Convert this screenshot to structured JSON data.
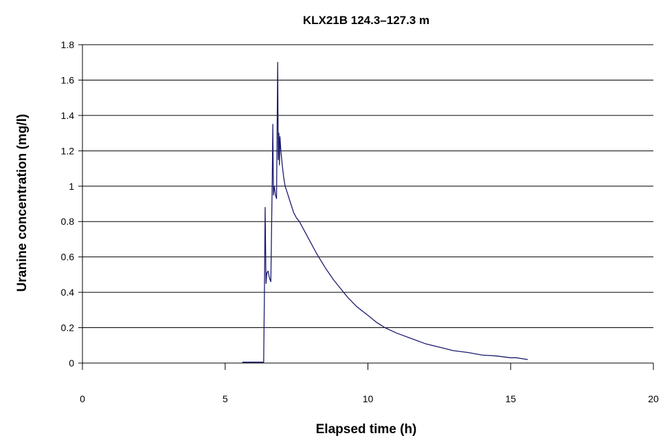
{
  "chart_data": {
    "type": "line",
    "title": "KLX21B 124.3–127.3 m",
    "xlabel": "Elapsed time (h)",
    "ylabel": "Uranine concentration (mg/l)",
    "xlim": [
      0,
      20
    ],
    "ylim": [
      0,
      1.8
    ],
    "xticks": [
      0,
      5,
      10,
      15,
      20
    ],
    "xtick_labels": [
      "0",
      "5",
      "10",
      "15",
      "20"
    ],
    "yticks": [
      0,
      0.2,
      0.4,
      0.6,
      0.8,
      1,
      1.2,
      1.4,
      1.6,
      1.8
    ],
    "ytick_labels": [
      "0",
      "0.2",
      "0.4",
      "0.6",
      "0.8",
      "1",
      "1.2",
      "1.4",
      "1.6",
      "1.8"
    ],
    "grid": "horizontal",
    "legend": "none",
    "colors": {
      "line": "#1a1a6e",
      "grid": "#000000",
      "axis": "#000000"
    },
    "series": [
      {
        "x": [
          5.6,
          6.0,
          6.35,
          6.38,
          6.4,
          6.43,
          6.46,
          6.5,
          6.55,
          6.6,
          6.65,
          6.67,
          6.69,
          6.72,
          6.76,
          6.8,
          6.82,
          6.84,
          6.86,
          6.88,
          6.9,
          6.92,
          6.95,
          7.0,
          7.05,
          7.1,
          7.2,
          7.3,
          7.4,
          7.5,
          7.6,
          7.8,
          8.0,
          8.2,
          8.5,
          8.8,
          9.0,
          9.3,
          9.6,
          10.0,
          10.3,
          10.6,
          11.0,
          11.5,
          12.0,
          12.5,
          13.0,
          13.5,
          14.0,
          14.5,
          15.0,
          15.2,
          15.4,
          15.6
        ],
        "y": [
          0.005,
          0.005,
          0.005,
          0.5,
          0.88,
          0.45,
          0.51,
          0.52,
          0.48,
          0.46,
          1.05,
          1.35,
          0.95,
          1.0,
          0.95,
          0.93,
          1.35,
          1.7,
          1.15,
          1.3,
          1.12,
          1.28,
          1.2,
          1.12,
          1.05,
          1.0,
          0.95,
          0.9,
          0.85,
          0.82,
          0.8,
          0.74,
          0.68,
          0.62,
          0.54,
          0.47,
          0.43,
          0.37,
          0.32,
          0.27,
          0.23,
          0.2,
          0.17,
          0.14,
          0.11,
          0.09,
          0.07,
          0.06,
          0.045,
          0.04,
          0.03,
          0.03,
          0.025,
          0.02
        ]
      }
    ]
  }
}
